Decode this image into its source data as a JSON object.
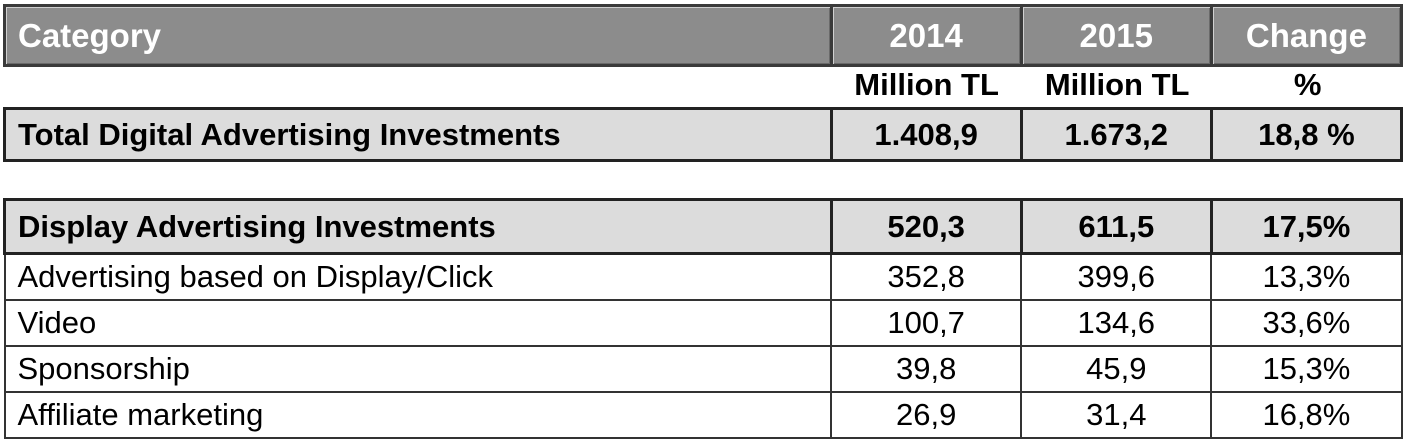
{
  "header": {
    "category": "Category",
    "col_2014": "2014",
    "col_2015": "2015",
    "col_change": "Change"
  },
  "units": {
    "col_2014": "Million TL",
    "col_2015": "Million TL",
    "col_change": "%"
  },
  "total": {
    "label": "Total Digital Advertising Investments",
    "v2014": "1.408,9",
    "v2015": "1.673,2",
    "change": "18,8 %"
  },
  "display": {
    "subtotal": {
      "label": "Display Advertising Investments",
      "v2014": "520,3",
      "v2015": "611,5",
      "change": "17,5%"
    },
    "rows": [
      {
        "label": "Advertising based on Display/Click",
        "v2014": "352,8",
        "v2015": "399,6",
        "change": "13,3%"
      },
      {
        "label": "Video",
        "v2014": "100,7",
        "v2015": "134,6",
        "change": "33,6%"
      },
      {
        "label": "Sponsorship",
        "v2014": "39,8",
        "v2015": "45,9",
        "change": "15,3%"
      },
      {
        "label": "Affiliate marketing",
        "v2014": "26,9",
        "v2015": "31,4",
        "change": "16,8%"
      }
    ]
  }
}
